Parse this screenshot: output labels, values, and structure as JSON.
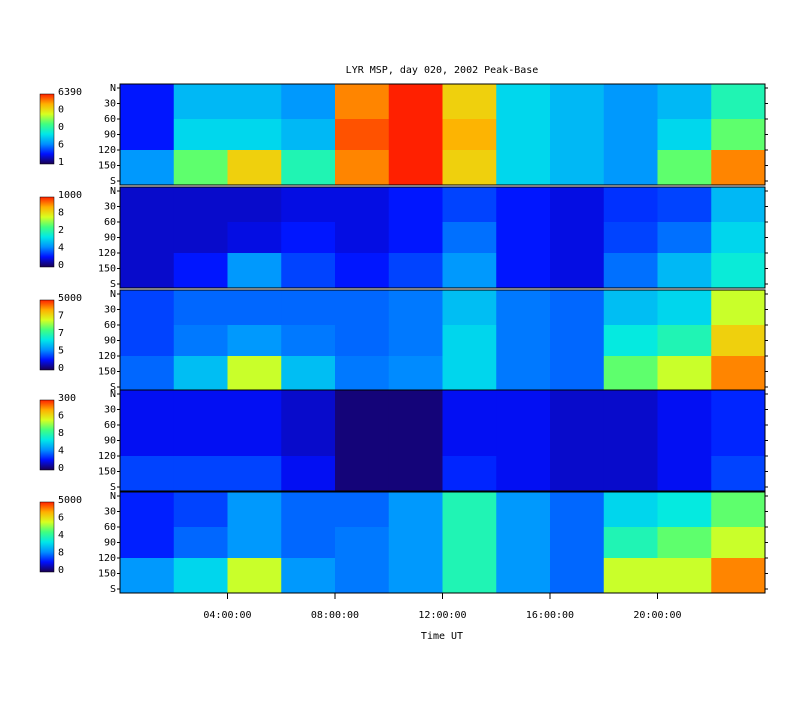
{
  "chart_data": {
    "type": "heatmap",
    "title": "LYR MSP, day 020, 2002 Peak-Base",
    "xlabel": "Time UT",
    "xlim": [
      0,
      24
    ],
    "xticks": [
      {
        "value": 4,
        "label": "04:00:00"
      },
      {
        "value": 8,
        "label": "08:00:00"
      },
      {
        "value": 12,
        "label": "12:00:00"
      },
      {
        "value": 16,
        "label": "16:00:00"
      },
      {
        "value": 20,
        "label": "20:00:00"
      }
    ],
    "xbins": [
      0,
      2,
      4,
      6,
      8,
      10,
      12,
      14,
      16,
      18,
      20,
      22,
      24
    ],
    "ylim": [
      0,
      180
    ],
    "yticks": [
      {
        "value": 0,
        "label": "N"
      },
      30,
      60,
      90,
      120,
      150,
      {
        "value": 180,
        "label": "S"
      }
    ],
    "ybins": [
      0,
      60,
      120,
      180
    ],
    "colormap": [
      "#1a0050",
      "#0010ff",
      "#0090ff",
      "#00e8e8",
      "#40ff80",
      "#d8ff20",
      "#ffb000",
      "#ff2000"
    ],
    "panels": [
      {
        "zlim": [
          1,
          6390
        ],
        "colorbar_labels": [
          "6390",
          "0",
          "0",
          "6",
          "1"
        ],
        "z": [
          [
            960,
            2240,
            2240,
            1920,
            5750,
            6390,
            5110,
            2560,
            2240,
            1920,
            2240,
            3200
          ],
          [
            960,
            2560,
            2560,
            2240,
            6070,
            6390,
            5430,
            2560,
            2240,
            1920,
            2560,
            3830
          ],
          [
            1920,
            3830,
            5110,
            3200,
            5750,
            6390,
            5110,
            2560,
            2240,
            1920,
            3830,
            5750
          ]
        ]
      },
      {
        "zlim": [
          0,
          1000
        ],
        "colorbar_labels": [
          "1000",
          "8",
          "2",
          "4",
          "0"
        ],
        "z": [
          [
            100,
            100,
            100,
            120,
            120,
            150,
            200,
            150,
            120,
            180,
            200,
            350
          ],
          [
            100,
            100,
            120,
            150,
            120,
            150,
            250,
            150,
            120,
            200,
            250,
            400
          ],
          [
            100,
            150,
            300,
            200,
            150,
            200,
            300,
            150,
            120,
            250,
            350,
            450
          ]
        ]
      },
      {
        "zlim": [
          0,
          5000
        ],
        "colorbar_labels": [
          "5000",
          "7",
          "7",
          "5",
          "0"
        ],
        "z": [
          [
            1000,
            1200,
            1200,
            1200,
            1200,
            1300,
            1800,
            1300,
            1200,
            1800,
            2000,
            3500
          ],
          [
            1000,
            1300,
            1500,
            1300,
            1200,
            1300,
            2000,
            1300,
            1200,
            2200,
            2500,
            4000
          ],
          [
            1200,
            1800,
            3500,
            1800,
            1300,
            1400,
            2000,
            1300,
            1200,
            3000,
            3500,
            4500
          ]
        ]
      },
      {
        "zlim": [
          0,
          300
        ],
        "colorbar_labels": [
          "300",
          "6",
          "8",
          "4",
          "0"
        ],
        "z": [
          [
            40,
            40,
            40,
            30,
            10,
            10,
            40,
            40,
            30,
            30,
            40,
            50
          ],
          [
            40,
            40,
            40,
            30,
            10,
            10,
            40,
            40,
            30,
            30,
            40,
            50
          ],
          [
            60,
            60,
            60,
            40,
            10,
            10,
            50,
            40,
            30,
            30,
            40,
            60
          ]
        ]
      },
      {
        "zlim": [
          0,
          5000
        ],
        "colorbar_labels": [
          "5000",
          "6",
          "4",
          "8",
          "0"
        ],
        "z": [
          [
            800,
            1000,
            1500,
            1200,
            1200,
            1500,
            2500,
            1500,
            1200,
            2000,
            2200,
            3000
          ],
          [
            800,
            1200,
            1500,
            1200,
            1300,
            1500,
            2500,
            1500,
            1200,
            2500,
            3000,
            3500
          ],
          [
            1500,
            2000,
            3500,
            1500,
            1300,
            1500,
            2500,
            1500,
            1200,
            3500,
            3500,
            4500
          ]
        ]
      }
    ]
  }
}
